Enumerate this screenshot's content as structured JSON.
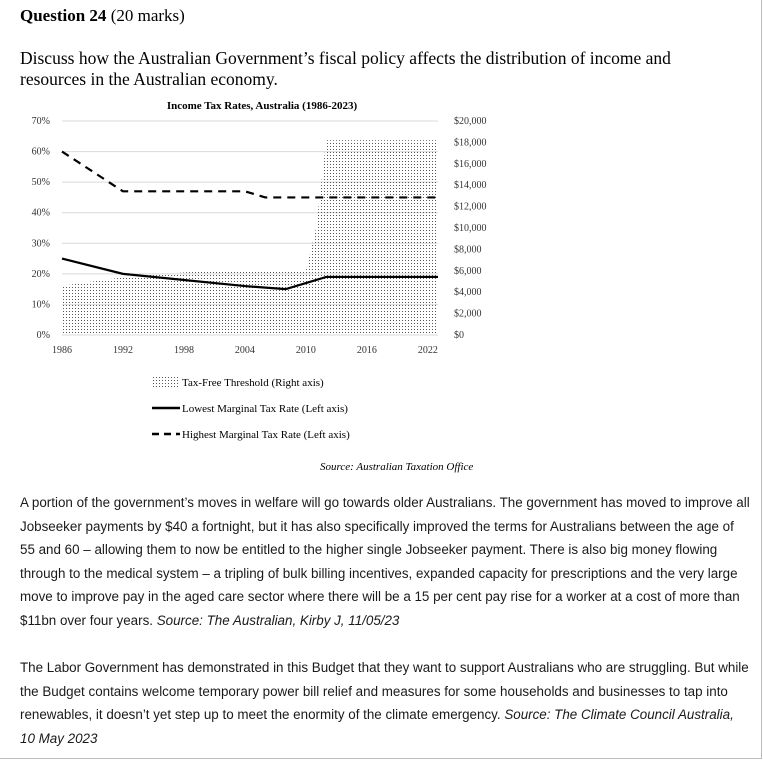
{
  "question": {
    "label": "Question 24",
    "marks": "(20 marks)",
    "prompt": "Discuss how the Australian Government’s fiscal policy affects the distribution of income and resources in the Australian economy."
  },
  "chart_data": {
    "type": "line",
    "title": "Income Tax Rates, Australia (1986-2023)",
    "x_ticks": [
      "1986",
      "1992",
      "1998",
      "2004",
      "2010",
      "2016",
      "2022"
    ],
    "left_axis": {
      "ticks": [
        "0%",
        "10%",
        "20%",
        "30%",
        "40%",
        "50%",
        "60%",
        "70%"
      ],
      "range": [
        0,
        70
      ]
    },
    "right_axis": {
      "ticks": [
        "$0",
        "$2,000",
        "$4,000",
        "$6,000",
        "$8,000",
        "$10,000",
        "$12,000",
        "$14,000",
        "$16,000",
        "$18,000",
        "$20,000"
      ],
      "range": [
        0,
        20000
      ]
    },
    "grid": true,
    "series": [
      {
        "name": "Tax-Free Threshold (Right axis)",
        "style": "dotted-area",
        "axis": "right",
        "points": [
          [
            1986,
            4600
          ],
          [
            1992,
            5400
          ],
          [
            2000,
            6000
          ],
          [
            2007,
            6000
          ],
          [
            2010,
            6000
          ],
          [
            2011,
            10000
          ],
          [
            2012,
            18200
          ],
          [
            2023,
            18200
          ]
        ]
      },
      {
        "name": "Lowest Marginal Tax Rate (Left axis)",
        "style": "solid",
        "axis": "left",
        "points": [
          [
            1986,
            25
          ],
          [
            1992,
            20
          ],
          [
            1998,
            18
          ],
          [
            2004,
            16
          ],
          [
            2008,
            15
          ],
          [
            2010,
            17
          ],
          [
            2012,
            19
          ],
          [
            2023,
            19
          ]
        ]
      },
      {
        "name": "Highest Marginal Tax Rate (Left axis)",
        "style": "dashed",
        "axis": "left",
        "points": [
          [
            1986,
            60
          ],
          [
            1992,
            47
          ],
          [
            2004,
            47
          ],
          [
            2006,
            45
          ],
          [
            2023,
            45
          ]
        ]
      }
    ]
  },
  "source_line": "Source: Australian Taxation Office",
  "para1": {
    "text": "A portion of the government’s moves in welfare will go towards older Australians. The government has moved to improve all Jobseeker payments by $40 a fortnight, but it has also specifically improved the terms for Australians between the age of 55 and 60 – allowing them to now be entitled to the higher single Jobseeker payment. There is also big money flowing through to the medical system – a tripling of bulk billing incentives, expanded capacity for prescriptions and the very large move to improve pay in the aged care sector where there will be a 15 per cent pay rise for a worker at a cost of more than $11bn over four years.",
    "source": "Source: The Australian, Kirby J, 11/05/23"
  },
  "para2": {
    "text": "The Labor Government has demonstrated in this Budget that they want to support Australians who are struggling. But while the Budget contains welcome temporary power bill relief and measures for some households and businesses to tap into renewables, it doesn’t yet step up to meet the enormity of the climate emergency.",
    "source": "Source: The Climate Council Australia, 10 May 2023"
  }
}
